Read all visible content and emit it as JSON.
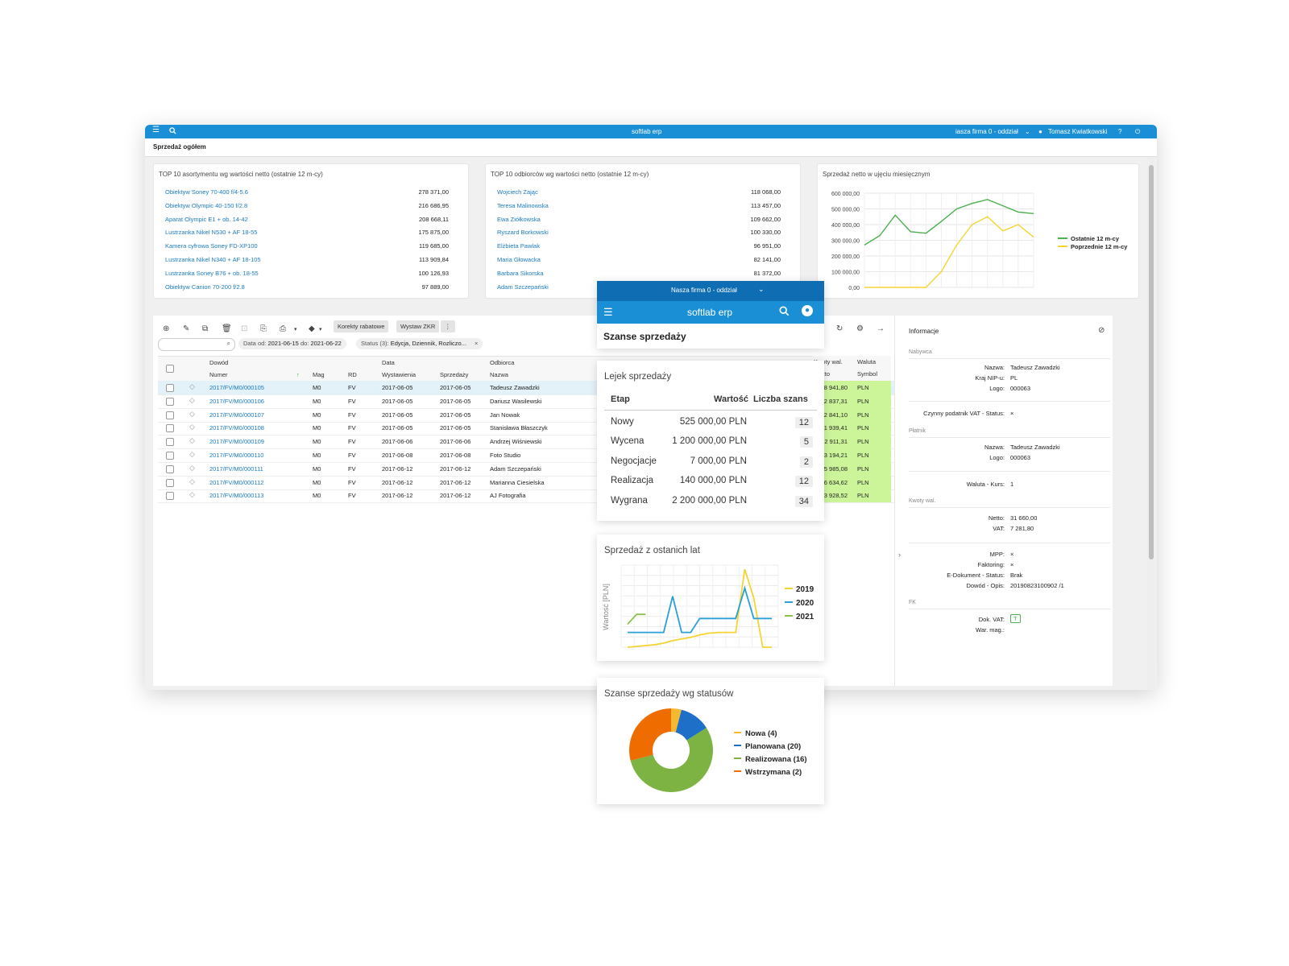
{
  "topbar": {
    "app_title": "softlab erp",
    "company": "iasza firma 0 - oddział",
    "user": "Tomasz Kwiatkowski"
  },
  "page_title": "Sprzedaż ogółem",
  "top10_products": {
    "title": "TOP 10 asortymentu wg wartości netto (ostatnie 12 m-cy)",
    "rows": [
      {
        "name": "Obiektyw Soney 70-400 f/4-5.6",
        "value": "278 371,00"
      },
      {
        "name": "Obiektyw Olympic 40-150 f/2.8",
        "value": "216 686,95"
      },
      {
        "name": "Aparat Olympic E1 + ob. 14-42",
        "value": "208 668,11"
      },
      {
        "name": "Lustrzanka Nikel N530 + AF 18-55",
        "value": "175 875,00"
      },
      {
        "name": "Kamera cyfrowa Soney FD-XP100",
        "value": "119 685,00"
      },
      {
        "name": "Lustrzanka Nikel N340 + AF 18-105",
        "value": "113 909,84"
      },
      {
        "name": "Lustrzanka Soney B76 + ob. 18-55",
        "value": "100 126,93"
      },
      {
        "name": "Obiektyw Canion 70-200 f/2.8",
        "value": "97 889,00"
      }
    ]
  },
  "top10_customers": {
    "title": "TOP 10 odbiorców wg wartości netto (ostatnie 12 m-cy)",
    "rows": [
      {
        "name": "Wojciech Zając",
        "value": "118 068,00"
      },
      {
        "name": "Teresa Malinowska",
        "value": "113 457,00"
      },
      {
        "name": "Ewa Ziółkowska",
        "value": "109 662,00"
      },
      {
        "name": "Ryszard Borkowski",
        "value": "100 330,00"
      },
      {
        "name": "Elżbieta Pawlak",
        "value": "96 951,00"
      },
      {
        "name": "Maria Głowacka",
        "value": "82 141,00"
      },
      {
        "name": "Barbara Sikorska",
        "value": "81 372,00"
      },
      {
        "name": "Adam Szczepański",
        "value": ""
      }
    ]
  },
  "monthly_chart_title": "Sprzedaż netto w ujęciu miesięcznym",
  "toolbar": {
    "btn_corrections": "Korekty rabatowe",
    "btn_zkr": "Wystaw ZKR",
    "date_label": "Data",
    "date_from_label": "od:",
    "date_from": "2021-06-15",
    "date_to_label": "do:",
    "date_to": "2021-06-22",
    "status_label": "Status (3):",
    "status_value": "Edycja, Dziennik, Rozliczo..."
  },
  "grid": {
    "group_headers": [
      "Dowód",
      "Data",
      "Odbiorca",
      "Kwoty wal.",
      "Waluta"
    ],
    "headers": [
      "Numer",
      "Mag",
      "RD",
      "Wystawienia",
      "Sprzedaży",
      "Nazwa",
      "Brutto",
      "Symbol"
    ],
    "rows": [
      {
        "numer": "2017/FV/M0/000105",
        "mag": "M0",
        "rd": "FV",
        "wyst": "2017-06-05",
        "sprz": "2017-06-05",
        "nazwa": "Tadeusz Zawadzki",
        "brutto": "38 941,80",
        "waluta": "PLN"
      },
      {
        "numer": "2017/FV/M0/000106",
        "mag": "M0",
        "rd": "FV",
        "wyst": "2017-06-05",
        "sprz": "2017-06-05",
        "nazwa": "Dariusz Wasilewski",
        "brutto": "32 837,31",
        "waluta": "PLN"
      },
      {
        "numer": "2017/FV/M0/000107",
        "mag": "M0",
        "rd": "FV",
        "wyst": "2017-06-05",
        "sprz": "2017-06-05",
        "nazwa": "Jan Nowak",
        "brutto": "22 841,10",
        "waluta": "PLN"
      },
      {
        "numer": "2017/FV/M0/000108",
        "mag": "M0",
        "rd": "FV",
        "wyst": "2017-06-05",
        "sprz": "2017-06-05",
        "nazwa": "Stanisława Błaszczyk",
        "brutto": "31 939,41",
        "waluta": "PLN"
      },
      {
        "numer": "2017/FV/M0/000109",
        "mag": "M0",
        "rd": "FV",
        "wyst": "2017-06-06",
        "sprz": "2017-06-06",
        "nazwa": "Andrzej Wiśniewski",
        "brutto": "12 911,31",
        "waluta": "PLN"
      },
      {
        "numer": "2017/FV/M0/000110",
        "mag": "M0",
        "rd": "FV",
        "wyst": "2017-06-08",
        "sprz": "2017-06-08",
        "nazwa": "Foto Studio",
        "brutto": "13 194,21",
        "waluta": "PLN"
      },
      {
        "numer": "2017/FV/M0/000111",
        "mag": "M0",
        "rd": "FV",
        "wyst": "2017-06-12",
        "sprz": "2017-06-12",
        "nazwa": "Adam Szczepański",
        "brutto": "15 985,08",
        "waluta": "PLN"
      },
      {
        "numer": "2017/FV/M0/000112",
        "mag": "M0",
        "rd": "FV",
        "wyst": "2017-06-12",
        "sprz": "2017-06-12",
        "nazwa": "Marianna Ciesielska",
        "brutto": "6 634,62",
        "waluta": "PLN"
      },
      {
        "numer": "2017/FV/M0/000113",
        "mag": "M0",
        "rd": "FV",
        "wyst": "2017-06-12",
        "sprz": "2017-06-12",
        "nazwa": "AJ Fotografia",
        "brutto": "13 928,52",
        "waluta": "PLN"
      }
    ]
  },
  "info": {
    "title": "Informacje",
    "buyer_section": "Nabywca",
    "buyer_name_label": "Nazwa:",
    "buyer_name": "Tadeusz Zawadzki",
    "buyer_country_label": "Kraj NIP-u:",
    "buyer_country": "PL",
    "buyer_logo_label": "Logo:",
    "buyer_logo": "000063",
    "vat_status_label": "Czynny podatnik VAT - Status:",
    "vat_status": "×",
    "payer_section": "Płatnik",
    "payer_name_label": "Nazwa:",
    "payer_name": "Tadeusz Zawadzki",
    "payer_logo_label": "Logo:",
    "payer_logo": "000063",
    "currency_rate_label": "Waluta - Kurs:",
    "currency_rate": "1",
    "amounts_section": "Kwoty wal.",
    "netto_label": "Netto:",
    "netto": "31 660,00",
    "vat_label": "VAT:",
    "vat": "7 281,80",
    "mpp_label": "MPP:",
    "mpp": "×",
    "factoring_label": "Faktoring:",
    "factoring": "×",
    "edoc_label": "E-Dokument - Status:",
    "edoc": "Brak",
    "doc_desc_label": "Dowód - Opis:",
    "doc_desc": "20190823100902 /1",
    "fk_section": "FK",
    "vat_doc_label": "Dok. VAT:",
    "vat_doc": "T",
    "war_mag_label": "War. mag.:"
  },
  "mobile": {
    "company": "Nasza firma 0 - oddział",
    "app_title": "softlab erp",
    "page_title": "Szanse sprzedaży",
    "funnel": {
      "title": "Lejek sprzedaży",
      "col_stage": "Etap",
      "col_value": "Wartość",
      "col_count": "Liczba szans",
      "rows": [
        {
          "stage": "Nowy",
          "value": "525 000,00 PLN",
          "count": "12"
        },
        {
          "stage": "Wycena",
          "value": "1 200 000,00 PLN",
          "count": "5"
        },
        {
          "stage": "Negocjacje",
          "value": "7 000,00 PLN",
          "count": "2"
        },
        {
          "stage": "Realizacja",
          "value": "140 000,00 PLN",
          "count": "12"
        },
        {
          "stage": "Wygrana",
          "value": "2 200 000,00 PLN",
          "count": "34"
        }
      ]
    },
    "years_chart_title": "Sprzedaż z ostanich lat",
    "status_chart_title": "Szanse sprzedaży wg statusów"
  },
  "colors": {
    "topbar": "#1a8fd6",
    "green_line": "#4caf50",
    "yellow_line": "#f5d432",
    "blue_line": "#2a9fd8",
    "light_green_line": "#8bc34a",
    "highlight_cells": "#ccf59a",
    "pie_yellow": "#f5b82e",
    "pie_blue": "#1e6fc8",
    "pie_green": "#7cb342",
    "pie_orange": "#ef6c00"
  },
  "chart_data": [
    {
      "type": "line",
      "title": "Sprzedaż netto w ujęciu miesięcznym",
      "ylim": [
        0,
        600000
      ],
      "y_ticks": [
        "0,00",
        "100 000,00",
        "200 000,00",
        "300 000,00",
        "400 000,00",
        "500 000,00",
        "600 000,00"
      ],
      "x": [
        1,
        2,
        3,
        4,
        5,
        6,
        7,
        8,
        9,
        10,
        11,
        12
      ],
      "series": [
        {
          "name": "Ostatnie 12 m-cy",
          "color": "#4caf50",
          "values": [
            270000,
            330000,
            460000,
            355000,
            345000,
            420000,
            500000,
            535000,
            560000,
            520000,
            480000,
            470000
          ]
        },
        {
          "name": "Poprzednie 12 m-cy",
          "color": "#f5d432",
          "values": [
            0,
            0,
            0,
            0,
            0,
            100000,
            270000,
            400000,
            450000,
            360000,
            400000,
            320000
          ]
        }
      ],
      "legend": "right"
    },
    {
      "type": "line",
      "title": "Sprzedaż z ostanich lat",
      "ylabel": "Wartość [PLN]",
      "x": [
        1,
        2,
        3,
        4,
        5,
        6,
        7,
        8,
        9,
        10,
        11,
        12,
        13,
        14,
        15,
        16,
        17
      ],
      "ylim": [
        0,
        100
      ],
      "series": [
        {
          "name": "2019",
          "color": "#f5d432",
          "values": [
            0,
            1,
            2,
            3,
            5,
            8,
            10,
            12,
            15,
            17,
            18,
            18,
            18,
            95,
            60,
            0,
            0
          ]
        },
        {
          "name": "2020",
          "color": "#2a9fd8",
          "values": [
            18,
            18,
            18,
            18,
            18,
            62,
            18,
            18,
            35,
            35,
            35,
            35,
            35,
            72,
            35,
            35,
            35
          ]
        },
        {
          "name": "2021",
          "color": "#8bc34a",
          "values": [
            28,
            40,
            40,
            null,
            null,
            null,
            null,
            null,
            null,
            null,
            null,
            null,
            null,
            null,
            null,
            null,
            null
          ]
        }
      ],
      "legend": "right"
    },
    {
      "type": "pie",
      "title": "Szanse sprzedaży wg statusów",
      "categories": [
        "Nowa (4)",
        "Planowana (20)",
        "Realizowana (16)",
        "Wstrzymana (2)"
      ],
      "values": [
        4,
        20,
        16,
        2
      ],
      "slice_shares": [
        4,
        12,
        55,
        29
      ],
      "colors": [
        "#f5b82e",
        "#1e6fc8",
        "#7cb342",
        "#ef6c00"
      ],
      "legend": "right"
    }
  ]
}
